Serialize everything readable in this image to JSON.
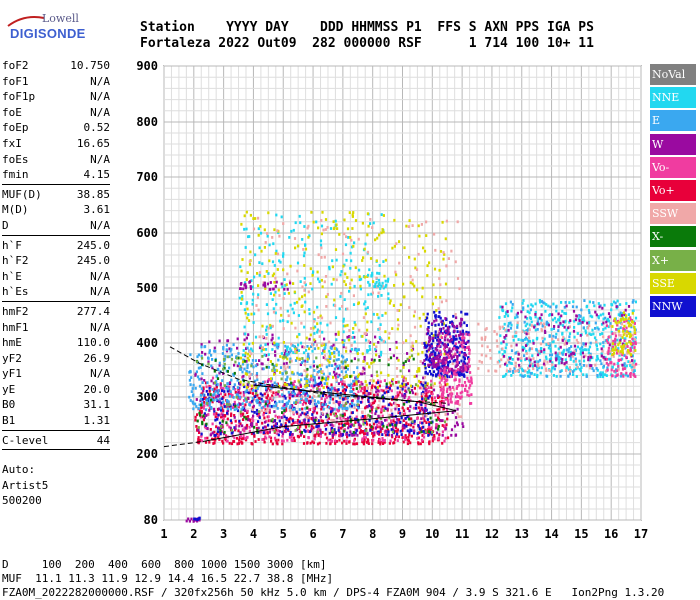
{
  "logo": {
    "line1": "Lowell",
    "line2": "DIGISONDE"
  },
  "header": {
    "line1": "Station    YYYY DAY    DDD HHMMSS P1  FFS S AXN PPS IGA PS",
    "line2": "Fortaleza 2022 Out09  282 000000 RSF      1 714 100 10+ 11"
  },
  "params": {
    "group1": [
      {
        "label": "foF2",
        "value": "10.750"
      },
      {
        "label": "foF1",
        "value": "N/A"
      },
      {
        "label": "foF1p",
        "value": "N/A"
      },
      {
        "label": "foE",
        "value": "N/A"
      },
      {
        "label": "foEp",
        "value": "0.52"
      },
      {
        "label": "fxI",
        "value": "16.65"
      },
      {
        "label": "foEs",
        "value": "N/A"
      },
      {
        "label": "fmin",
        "value": "4.15"
      }
    ],
    "group2": [
      {
        "label": "MUF(D)",
        "value": "38.85"
      },
      {
        "label": "M(D)",
        "value": "3.61"
      },
      {
        "label": "D",
        "value": "N/A"
      }
    ],
    "group3": [
      {
        "label": "h`F",
        "value": "245.0"
      },
      {
        "label": "h`F2",
        "value": "245.0"
      },
      {
        "label": "h`E",
        "value": "N/A"
      },
      {
        "label": "h`Es",
        "value": "N/A"
      }
    ],
    "group4": [
      {
        "label": "hmF2",
        "value": "277.4"
      },
      {
        "label": "hmF1",
        "value": "N/A"
      },
      {
        "label": "hmE",
        "value": "110.0"
      },
      {
        "label": "yF2",
        "value": "26.9"
      },
      {
        "label": "yF1",
        "value": "N/A"
      },
      {
        "label": "yE",
        "value": "20.0"
      },
      {
        "label": "B0",
        "value": "31.1"
      },
      {
        "label": "B1",
        "value": "1.31"
      }
    ],
    "group5": [
      {
        "label": "C-level",
        "value": "44"
      }
    ],
    "auto": [
      "Auto:",
      "Artist5",
      "500200"
    ]
  },
  "legend": [
    {
      "label": "NoVal",
      "color": "#808080"
    },
    {
      "label": "NNE",
      "color": "#22d8f0"
    },
    {
      "label": "E",
      "color": "#3aa8f0"
    },
    {
      "label": "W",
      "color": "#9a0aa0"
    },
    {
      "label": "Vo-",
      "color": "#f03ca0"
    },
    {
      "label": "Vo+",
      "color": "#e8003a"
    },
    {
      "label": "SSW",
      "color": "#f0a8a8"
    },
    {
      "label": "X-",
      "color": "#0a7a0a"
    },
    {
      "label": "X+",
      "color": "#78b048"
    },
    {
      "label": "SSE",
      "color": "#d8d800"
    },
    {
      "label": "NNW",
      "color": "#1010d0"
    }
  ],
  "footer": {
    "line1": "D     100  200  400  600  800 1000 1500 3000 [km]",
    "line2": "MUF  11.1 11.3 11.9 12.9 14.4 16.5 22.7 38.8 [MHz]",
    "line3": "FZA0M_2022282000000.RSF / 320fx256h 50 kHz 5.0 km / DPS-4 FZA0M 904 / 3.9 S 321.6 E   Ion2Png 1.3.20"
  },
  "chart_data": {
    "type": "scatter",
    "xlim": [
      1,
      17
    ],
    "ylim": [
      80,
      900
    ],
    "x_ticks": [
      "1",
      "2",
      "3",
      "4",
      "5",
      "6",
      "7",
      "8",
      "9",
      "10",
      "11",
      "12",
      "13",
      "14",
      "15",
      "16",
      "17"
    ],
    "y_ticks": [
      "80",
      "200",
      "300",
      "400",
      "500",
      "600",
      "700",
      "800",
      "900"
    ],
    "grid": true,
    "trace_solid": [
      [
        2.3,
        222
      ],
      [
        5.0,
        248
      ],
      [
        8.0,
        262
      ],
      [
        10.8,
        276
      ],
      [
        9.5,
        292
      ],
      [
        7.0,
        305
      ],
      [
        5.0,
        316
      ],
      [
        4.0,
        322
      ]
    ],
    "trace_dashed": [
      [
        1.2,
        393
      ],
      [
        2.2,
        362
      ],
      [
        3.5,
        333
      ],
      [
        5.0,
        318
      ],
      [
        6.5,
        304
      ],
      [
        8.0,
        298
      ],
      [
        9.2,
        293
      ],
      [
        10.5,
        289
      ]
    ],
    "trace_baseline": [
      [
        1.0,
        213
      ],
      [
        2.3,
        222
      ]
    ],
    "clusters": [
      {
        "series": "Vo+",
        "x": [
          2.0,
          10.5
        ],
        "y": [
          220,
          330
        ],
        "n": 700
      },
      {
        "series": "Vo-",
        "x": [
          2.2,
          10.5
        ],
        "y": [
          225,
          340
        ],
        "n": 350
      },
      {
        "series": "NNW",
        "x": [
          2.2,
          10.0
        ],
        "y": [
          235,
          330
        ],
        "n": 300
      },
      {
        "series": "W",
        "x": [
          2.0,
          11.0
        ],
        "y": [
          235,
          420
        ],
        "n": 350
      },
      {
        "series": "E",
        "x": [
          1.8,
          7.5
        ],
        "y": [
          280,
          400
        ],
        "n": 400
      },
      {
        "series": "NNE",
        "x": [
          3.5,
          8.5
        ],
        "y": [
          380,
          640
        ],
        "n": 250
      },
      {
        "series": "SSE",
        "x": [
          3.5,
          10.5
        ],
        "y": [
          320,
          640
        ],
        "n": 350
      },
      {
        "series": "SSW",
        "x": [
          3.8,
          11.0
        ],
        "y": [
          260,
          630
        ],
        "n": 250
      },
      {
        "series": "X-",
        "x": [
          2.0,
          10.5
        ],
        "y": [
          240,
          380
        ],
        "n": 90
      },
      {
        "series": "X+",
        "x": [
          2.0,
          10.5
        ],
        "y": [
          240,
          380
        ],
        "n": 90
      },
      {
        "series": "NNW",
        "x": [
          9.7,
          11.2
        ],
        "y": [
          340,
          460
        ],
        "n": 220
      },
      {
        "series": "W",
        "x": [
          9.8,
          11.2
        ],
        "y": [
          350,
          450
        ],
        "n": 150
      },
      {
        "series": "Vo-",
        "x": [
          10.2,
          11.3
        ],
        "y": [
          290,
          420
        ],
        "n": 120
      },
      {
        "series": "NNE",
        "x": [
          12.2,
          16.8
        ],
        "y": [
          340,
          480
        ],
        "n": 400
      },
      {
        "series": "E",
        "x": [
          12.5,
          16.8
        ],
        "y": [
          340,
          480
        ],
        "n": 150
      },
      {
        "series": "SSW",
        "x": [
          11.5,
          16.8
        ],
        "y": [
          350,
          440
        ],
        "n": 150
      },
      {
        "series": "W",
        "x": [
          12.3,
          16.8
        ],
        "y": [
          360,
          470
        ],
        "n": 110
      },
      {
        "series": "Vo-",
        "x": [
          15.8,
          16.8
        ],
        "y": [
          340,
          450
        ],
        "n": 80
      },
      {
        "series": "SSE",
        "x": [
          16.0,
          16.8
        ],
        "y": [
          380,
          460
        ],
        "n": 60
      },
      {
        "series": "W",
        "x": [
          3.5,
          5.2
        ],
        "y": [
          500,
          515
        ],
        "n": 30
      },
      {
        "series": "NNE",
        "x": [
          7.8,
          8.5
        ],
        "y": [
          505,
          530
        ],
        "n": 20
      },
      {
        "series": "W",
        "x": [
          1.7,
          2.2
        ],
        "y": [
          80,
          85
        ],
        "n": 14
      },
      {
        "series": "NNW",
        "x": [
          1.9,
          2.2
        ],
        "y": [
          83,
          87
        ],
        "n": 8
      }
    ]
  }
}
